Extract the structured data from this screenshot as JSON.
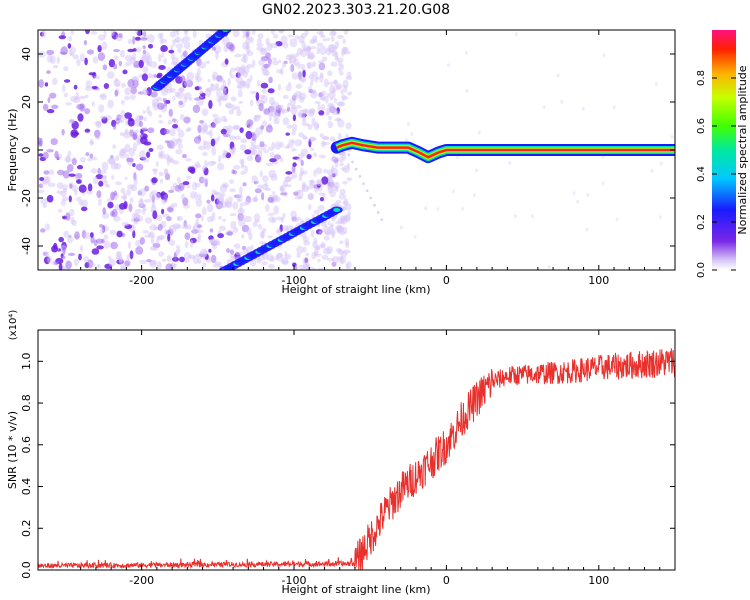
{
  "figure": {
    "title": "GN02.2023.303.21.20.G08"
  },
  "colorbar": {
    "label": "Normalized spectral amplitude",
    "ticks": [
      "0.0",
      "0.2",
      "0.4",
      "0.6",
      "0.8"
    ]
  },
  "chart_data": [
    {
      "type": "heatmap",
      "xlabel": "Height of straight line (km)",
      "ylabel": "Frequency (Hz)",
      "xlim": [
        -268,
        150
      ],
      "ylim": [
        -50,
        50
      ],
      "x_ticks": [
        -200,
        -100,
        0,
        100
      ],
      "x_tick_labels": [
        "-200",
        "-100",
        "0",
        "100"
      ],
      "y_ticks": [
        -40,
        -20,
        0,
        20,
        40
      ],
      "y_tick_labels": [
        "-40",
        "-20",
        "0",
        "20",
        "40"
      ],
      "colorscale": "rainbow (purple=0 to red=1)",
      "features": {
        "noise_region_x": [
          -268,
          -70
        ],
        "main_line": {
          "x": [
            -72,
            -68,
            -62,
            -55,
            -45,
            -35,
            -25,
            -18,
            -12,
            -5,
            0,
            5,
            10,
            20,
            40,
            80,
            150
          ],
          "y": [
            1,
            2,
            3,
            2,
            1,
            1,
            1,
            -1,
            -3,
            -1,
            0,
            0,
            0,
            0,
            0,
            0,
            0
          ]
        },
        "upper_diagonal": {
          "x": [
            -190,
            -145
          ],
          "y": [
            26,
            50
          ]
        },
        "lower_diagonal": {
          "x": [
            -145,
            -72
          ],
          "y": [
            -50,
            -25
          ]
        }
      }
    },
    {
      "type": "line",
      "xlabel": "Height of straight line (km)",
      "ylabel": "SNR (10 * v/v)",
      "y_multiplier": "(x10⁴)",
      "xlim": [
        -268,
        150
      ],
      "ylim": [
        0,
        1.15
      ],
      "x_ticks": [
        -200,
        -100,
        0,
        100
      ],
      "x_tick_labels": [
        "-200",
        "-100",
        "0",
        "100"
      ],
      "y_ticks": [
        0,
        0.2,
        0.4,
        0.6,
        0.8,
        1.0
      ],
      "y_tick_labels": [
        "0.0",
        "0.2",
        "0.4",
        "0.6",
        "0.8",
        "1.0"
      ],
      "color": "#e8302c",
      "series": [
        {
          "x": [
            -268,
            -60,
            -50,
            -40,
            -30,
            -20,
            -10,
            0,
            10,
            20,
            30,
            40,
            60,
            80,
            100,
            120,
            150
          ],
          "values": [
            0.02,
            0.03,
            0.15,
            0.28,
            0.38,
            0.45,
            0.52,
            0.6,
            0.72,
            0.82,
            0.9,
            0.93,
            0.94,
            0.95,
            0.97,
            0.98,
            1.0
          ]
        }
      ]
    }
  ]
}
